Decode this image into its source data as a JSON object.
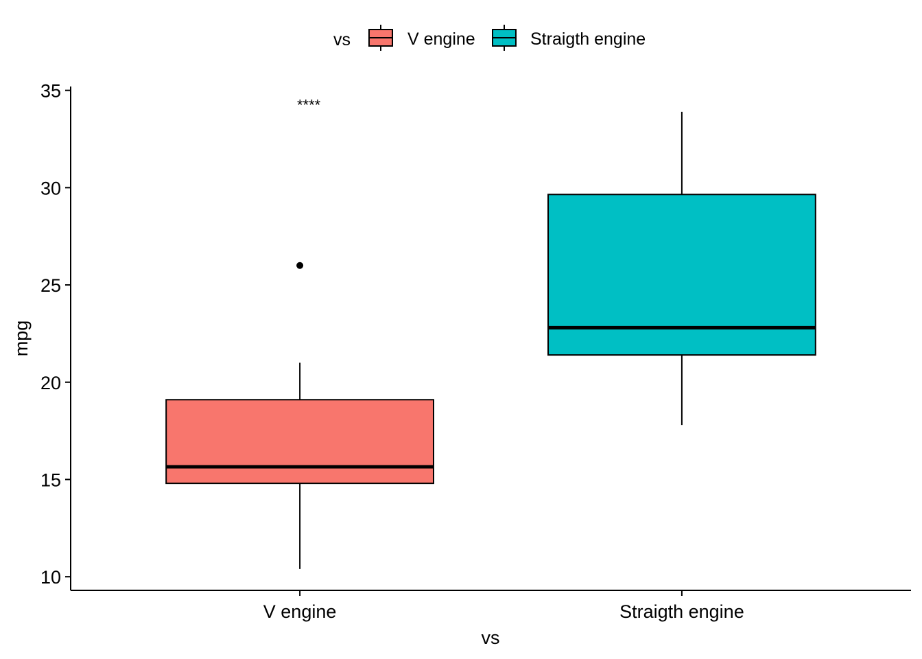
{
  "chart_data": {
    "type": "box",
    "title": "",
    "xlabel": "vs",
    "ylabel": "mpg",
    "ylim": [
      9.3,
      35.2
    ],
    "y_ticks": [
      10,
      15,
      20,
      25,
      30,
      35
    ],
    "y_tick_labels": [
      "10",
      "15",
      "20",
      "25",
      "30",
      "35"
    ],
    "grid": false,
    "categories": [
      "V engine",
      "Straigth engine"
    ],
    "legend": {
      "title": "vs",
      "placement": "top",
      "entries": [
        "V engine",
        "Straigth engine"
      ]
    },
    "series": [
      {
        "category": "V engine",
        "color": "#F8766D",
        "min": 10.4,
        "q1": 14.8,
        "median": 15.65,
        "q3": 19.1,
        "max": 21.0,
        "outliers": [
          26.0
        ]
      },
      {
        "category": "Straigth engine",
        "color": "#00BFC4",
        "min": 17.8,
        "q1": 21.4,
        "median": 22.8,
        "q3": 29.65,
        "max": 33.9,
        "outliers": []
      }
    ],
    "annotations": [
      {
        "text": "****",
        "x": "V engine",
        "y": 34.4
      }
    ]
  }
}
